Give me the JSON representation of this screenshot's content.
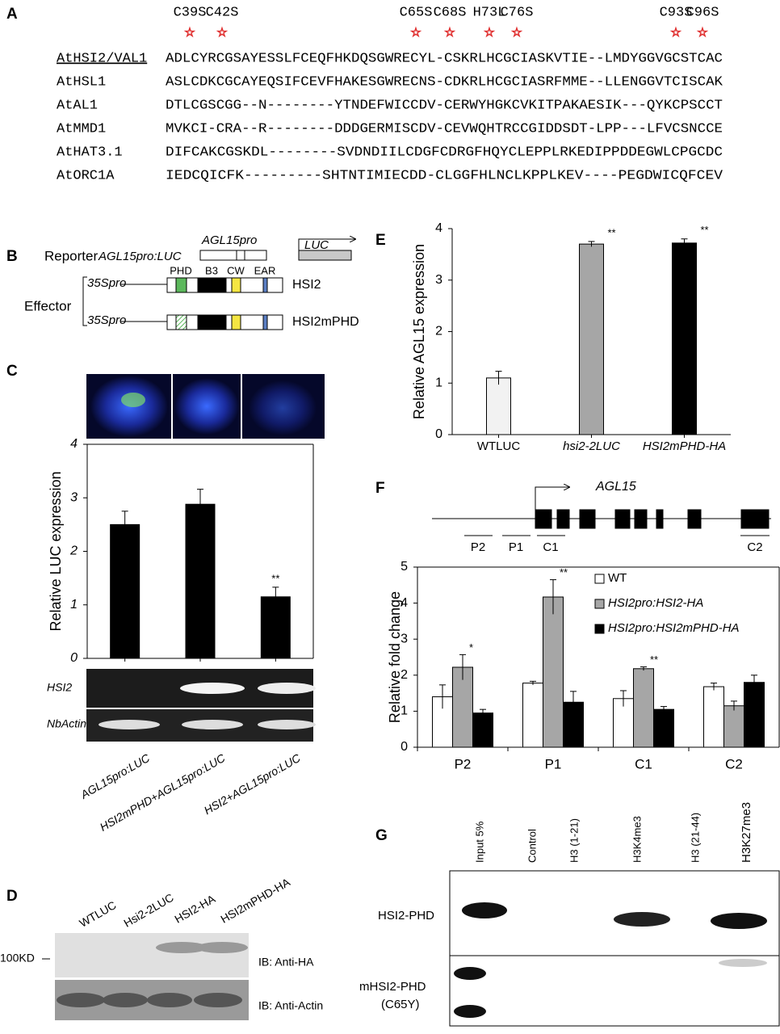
{
  "panel_labels": [
    "A",
    "B",
    "C",
    "D",
    "E",
    "F",
    "G"
  ],
  "panel_a": {
    "mutations": [
      "C39S",
      "C42S",
      "C65S",
      "C68S",
      "H73L",
      "C76S",
      "C93S",
      "C96S"
    ],
    "rows": [
      {
        "name": "AtHSI2/VAL1",
        "sequence": "ADLCYRCGSAYESSLFCEQFHKDQSGWRECYL-CSKRLHCGCIASKVTIE--LMDYGGVGCSTCAC"
      },
      {
        "name": "AtHSL1",
        "sequence": "ASLCDKCGCAYEQSIFCEVFHAKESGWRECNS-CDKRLHCGCIASRFMME--LLENGGVTCISCAK"
      },
      {
        "name": "AtAL1",
        "sequence": "DTLCGSCGG--N--------YTNDEFWICCDV-CERWYHGKCVKITPAKAESIK---QYKCPSCCT"
      },
      {
        "name": "AtMMD1",
        "sequence": "MVKCI-CRA--R--------DDDGERMISCDV-CEVWQHTRCCGIDDSDT-LPP---LFVCSNCCE"
      },
      {
        "name": "AtHAT3.1",
        "sequence": "DIFCAKCGSKDL--------SVDNDIILCDGFCDRGFHQYCLEPPLRKEDIPPDDEGWLCPGCDC"
      },
      {
        "name": "AtORC1A",
        "sequence": "IEDCQICFK---------SHTNTIMIECDD-CLGGFHLNCLKPPLKEV----PEGDWICQFCEV"
      }
    ]
  },
  "panel_b": {
    "reporter": "Reporter",
    "reporter_construct": "AGL15pro:LUC",
    "promoter": "AGL15pro",
    "gene": "LUC",
    "effector": "Effector",
    "promoters": [
      "35Spro",
      "35Spro"
    ],
    "domains": [
      "PHD",
      "B3",
      "CW",
      "EAR"
    ],
    "effectors": [
      "HSI2",
      "HSI2mPHD"
    ]
  },
  "panel_c": {
    "gel_labels": [
      "HSI2",
      "NbActin"
    ]
  },
  "panel_d": {
    "lanes": [
      "WTLUC",
      "Hsi2-2LUC",
      "HSI2-HA",
      "HSI2mPHD-HA"
    ],
    "marker": "100KD",
    "blots": [
      "IB: Anti-HA",
      "IB: Anti-Actin"
    ]
  },
  "panel_f": {
    "gene": "AGL15",
    "regions": [
      "P2",
      "P1",
      "C1",
      "C2"
    ]
  },
  "panel_g": {
    "columns": [
      "Input 5%",
      "Control",
      "H3 (1-21)",
      "H3K4me3",
      "H3 (21-44)",
      "H3K27me3"
    ],
    "rows": [
      "HSI2-PHD",
      "mHSI2-PHD",
      "(C65Y)"
    ]
  },
  "chart_data": [
    {
      "type": "bar",
      "ylabel": "Relative LUC expression",
      "categories": [
        "AGL15pro:LUC",
        "HSI2mPHD+AGL15pro:LUC",
        "HSI2+AGL15pro:LUC"
      ],
      "values": [
        2.5,
        2.88,
        1.15
      ],
      "errors": [
        0.25,
        0.28,
        0.18
      ],
      "color": "#000000",
      "ylim": [
        0,
        4
      ],
      "yticks": [
        0,
        1,
        2,
        3,
        4
      ],
      "annotations": [
        {
          "index": 2,
          "text": "**"
        }
      ]
    },
    {
      "type": "bar",
      "ylabel": "Relative AGL15 expression",
      "categories": [
        "WTLUC",
        "hsi2-2LUC",
        "HSI2mPHD-HA"
      ],
      "values": [
        1.1,
        3.7,
        3.72
      ],
      "errors": [
        0.13,
        0.05,
        0.08
      ],
      "colors": [
        "#f2f2f2",
        "#a6a6a6",
        "#000000"
      ],
      "ylim": [
        0,
        4
      ],
      "yticks": [
        0,
        1,
        2,
        3,
        4
      ],
      "annotations": [
        {
          "index": 1,
          "text": "**"
        },
        {
          "index": 2,
          "text": "**"
        }
      ]
    },
    {
      "type": "grouped_bar",
      "ylabel": "Relative fold change",
      "categories": [
        "P2",
        "P1",
        "C1",
        "C2"
      ],
      "series": [
        {
          "name": "WT",
          "color": "#ffffff",
          "values": [
            1.4,
            1.78,
            1.35,
            1.68
          ],
          "errors": [
            0.33,
            0.05,
            0.22,
            0.1
          ]
        },
        {
          "name": "HSI2pro:HSI2-HA",
          "color": "#a6a6a6",
          "values": [
            2.22,
            4.17,
            2.18,
            1.15
          ],
          "errors": [
            0.35,
            0.48,
            0.05,
            0.13
          ]
        },
        {
          "name": "HSI2pro:HSI2mPHD-HA",
          "color": "#000000",
          "values": [
            0.95,
            1.25,
            1.05,
            1.8
          ],
          "errors": [
            0.1,
            0.3,
            0.08,
            0.2
          ]
        }
      ],
      "ylim": [
        0,
        5
      ],
      "yticks": [
        0,
        1,
        2,
        3,
        4,
        5
      ],
      "legend": "upper right",
      "annotations": [
        {
          "series": 1,
          "index": 0,
          "text": "*"
        },
        {
          "series": 1,
          "index": 1,
          "text": "**"
        },
        {
          "series": 1,
          "index": 2,
          "text": "**"
        }
      ]
    }
  ]
}
